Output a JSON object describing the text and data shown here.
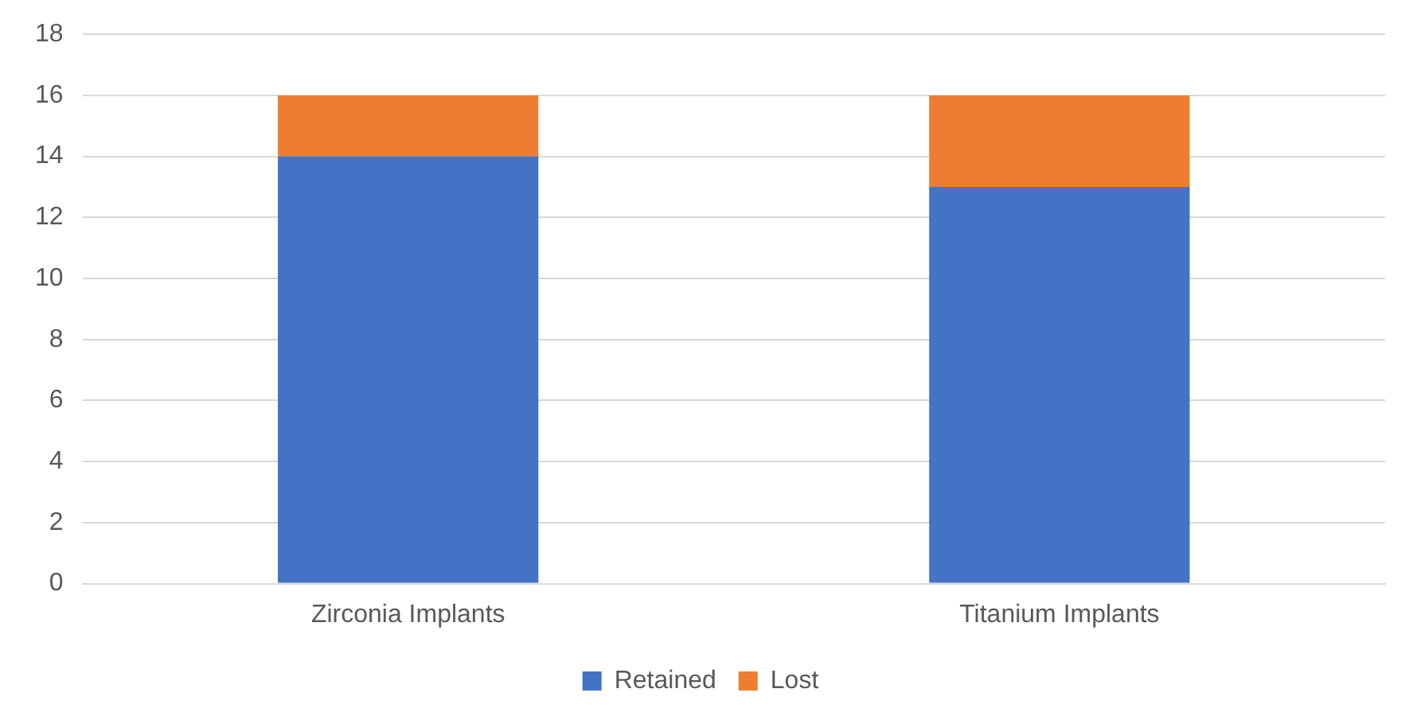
{
  "chart_data": {
    "type": "bar",
    "stacked": true,
    "categories": [
      "Zirconia Implants",
      "Titanium Implants"
    ],
    "series": [
      {
        "name": "Retained",
        "color": "#4472c4",
        "values": [
          14,
          13
        ]
      },
      {
        "name": "Lost",
        "color": "#ed7d31",
        "values": [
          2,
          3
        ]
      }
    ],
    "ylim": [
      0,
      18
    ],
    "yticks": [
      0,
      2,
      4,
      6,
      8,
      10,
      12,
      14,
      16,
      18
    ],
    "grid": "y",
    "legend": "bottom"
  }
}
